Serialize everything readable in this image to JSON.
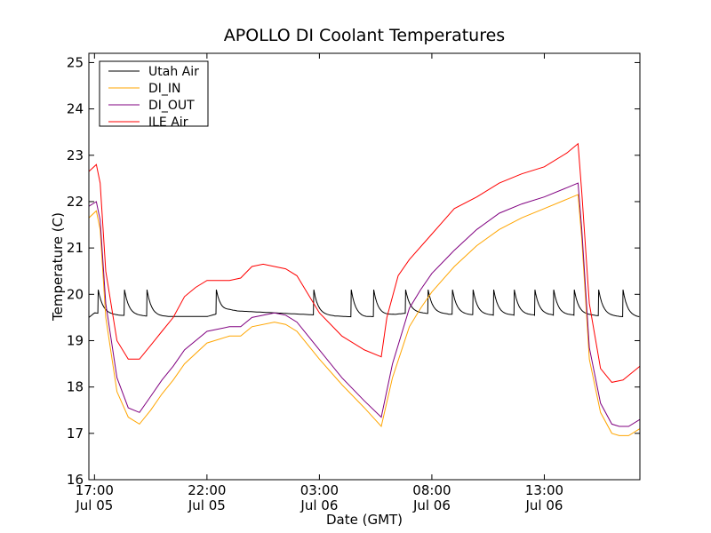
{
  "chart_data": {
    "type": "line",
    "title": "APOLLO DI Coolant Temperatures",
    "xlabel": "Date (GMT)",
    "ylabel": "Temperature (C)",
    "ylim": [
      16,
      25.2
    ],
    "xlim": [
      "Jul 05 16:45",
      "Jul 06 17:15"
    ],
    "yticks": [
      16,
      17,
      18,
      19,
      20,
      21,
      22,
      23,
      24,
      25
    ],
    "xticks": [
      {
        "t": "Jul 05 17:00",
        "line1": "17:00",
        "line2": "Jul 05"
      },
      {
        "t": "Jul 05 22:00",
        "line1": "22:00",
        "line2": "Jul 05"
      },
      {
        "t": "Jul 06 03:00",
        "line1": "03:00",
        "line2": "Jul 06"
      },
      {
        "t": "Jul 06 08:00",
        "line1": "08:00",
        "line2": "Jul 06"
      },
      {
        "t": "Jul 06 13:00",
        "line1": "13:00",
        "line2": "Jul 06"
      }
    ],
    "grid": false,
    "legend_position": "top-left",
    "series": [
      {
        "name": "Utah Air",
        "color": "#000000",
        "points": [
          [
            "Jul 05 16:45",
            19.5
          ],
          [
            "Jul 05 17:00",
            19.6
          ],
          [
            "Jul 05 18:00",
            19.55
          ],
          [
            "Jul 05 20:00",
            19.52
          ],
          [
            "Jul 05 22:00",
            19.52
          ],
          [
            "Jul 05 23:00",
            19.65
          ],
          [
            "Jul 06 01:00",
            19.6
          ],
          [
            "Jul 06 03:00",
            19.55
          ],
          [
            "Jul 06 05:00",
            19.5
          ],
          [
            "Jul 06 07:00",
            19.6
          ],
          [
            "Jul 06 10:00",
            19.55
          ],
          [
            "Jul 06 13:00",
            19.55
          ],
          [
            "Jul 06 15:00",
            19.55
          ],
          [
            "Jul 06 17:15",
            19.5
          ]
        ],
        "spikes": [
          "Jul 05 17:10",
          "Jul 05 18:20",
          "Jul 05 19:20",
          "Jul 05 22:25",
          "Jul 06 02:45",
          "Jul 06 04:25",
          "Jul 06 05:25",
          "Jul 06 06:50",
          "Jul 06 07:50",
          "Jul 06 08:55",
          "Jul 06 09:50",
          "Jul 06 10:45",
          "Jul 06 11:40",
          "Jul 06 12:35",
          "Jul 06 13:25",
          "Jul 06 14:20",
          "Jul 06 15:25",
          "Jul 06 16:30"
        ],
        "spike_peak": 20.1
      },
      {
        "name": "DI_IN",
        "color": "#ffa500",
        "points": [
          [
            "Jul 05 16:45",
            21.65
          ],
          [
            "Jul 05 17:05",
            21.8
          ],
          [
            "Jul 05 17:15",
            21.4
          ],
          [
            "Jul 05 17:30",
            19.5
          ],
          [
            "Jul 05 18:00",
            17.9
          ],
          [
            "Jul 05 18:30",
            17.35
          ],
          [
            "Jul 05 19:00",
            17.2
          ],
          [
            "Jul 05 19:30",
            17.5
          ],
          [
            "Jul 05 20:00",
            17.85
          ],
          [
            "Jul 05 20:30",
            18.15
          ],
          [
            "Jul 05 21:00",
            18.5
          ],
          [
            "Jul 05 22:00",
            18.95
          ],
          [
            "Jul 05 23:00",
            19.1
          ],
          [
            "Jul 05 23:30",
            19.1
          ],
          [
            "Jul 06 00:00",
            19.3
          ],
          [
            "Jul 06 01:00",
            19.4
          ],
          [
            "Jul 06 01:30",
            19.35
          ],
          [
            "Jul 06 02:00",
            19.2
          ],
          [
            "Jul 06 03:00",
            18.6
          ],
          [
            "Jul 06 04:00",
            18.05
          ],
          [
            "Jul 06 05:00",
            17.55
          ],
          [
            "Jul 06 05:45",
            17.15
          ],
          [
            "Jul 06 06:15",
            18.2
          ],
          [
            "Jul 06 07:00",
            19.3
          ],
          [
            "Jul 06 07:30",
            19.7
          ],
          [
            "Jul 06 08:00",
            20.05
          ],
          [
            "Jul 06 09:00",
            20.6
          ],
          [
            "Jul 06 10:00",
            21.05
          ],
          [
            "Jul 06 11:00",
            21.4
          ],
          [
            "Jul 06 12:00",
            21.65
          ],
          [
            "Jul 06 13:00",
            21.85
          ],
          [
            "Jul 06 14:00",
            22.05
          ],
          [
            "Jul 06 14:30",
            22.15
          ],
          [
            "Jul 06 14:40",
            21.2
          ],
          [
            "Jul 06 15:00",
            18.6
          ],
          [
            "Jul 06 15:30",
            17.45
          ],
          [
            "Jul 06 16:00",
            17.0
          ],
          [
            "Jul 06 16:20",
            16.95
          ],
          [
            "Jul 06 16:45",
            16.95
          ],
          [
            "Jul 06 17:15",
            17.1
          ]
        ]
      },
      {
        "name": "DI_OUT",
        "color": "#800080",
        "points": [
          [
            "Jul 05 16:45",
            21.9
          ],
          [
            "Jul 05 17:05",
            22.0
          ],
          [
            "Jul 05 17:15",
            21.6
          ],
          [
            "Jul 05 17:30",
            19.8
          ],
          [
            "Jul 05 18:00",
            18.2
          ],
          [
            "Jul 05 18:30",
            17.55
          ],
          [
            "Jul 05 19:00",
            17.45
          ],
          [
            "Jul 05 19:30",
            17.8
          ],
          [
            "Jul 05 20:00",
            18.15
          ],
          [
            "Jul 05 20:30",
            18.45
          ],
          [
            "Jul 05 21:00",
            18.8
          ],
          [
            "Jul 05 22:00",
            19.2
          ],
          [
            "Jul 05 23:00",
            19.3
          ],
          [
            "Jul 05 23:30",
            19.3
          ],
          [
            "Jul 06 00:00",
            19.5
          ],
          [
            "Jul 06 01:00",
            19.6
          ],
          [
            "Jul 06 01:30",
            19.55
          ],
          [
            "Jul 06 02:00",
            19.4
          ],
          [
            "Jul 06 03:00",
            18.8
          ],
          [
            "Jul 06 04:00",
            18.2
          ],
          [
            "Jul 06 05:00",
            17.7
          ],
          [
            "Jul 06 05:45",
            17.35
          ],
          [
            "Jul 06 06:15",
            18.5
          ],
          [
            "Jul 06 07:00",
            19.7
          ],
          [
            "Jul 06 07:30",
            20.1
          ],
          [
            "Jul 06 08:00",
            20.45
          ],
          [
            "Jul 06 09:00",
            20.95
          ],
          [
            "Jul 06 10:00",
            21.4
          ],
          [
            "Jul 06 11:00",
            21.75
          ],
          [
            "Jul 06 12:00",
            21.95
          ],
          [
            "Jul 06 13:00",
            22.1
          ],
          [
            "Jul 06 14:00",
            22.3
          ],
          [
            "Jul 06 14:30",
            22.4
          ],
          [
            "Jul 06 14:40",
            21.4
          ],
          [
            "Jul 06 15:00",
            18.85
          ],
          [
            "Jul 06 15:30",
            17.65
          ],
          [
            "Jul 06 16:00",
            17.2
          ],
          [
            "Jul 06 16:20",
            17.15
          ],
          [
            "Jul 06 16:45",
            17.15
          ],
          [
            "Jul 06 17:15",
            17.3
          ]
        ]
      },
      {
        "name": "ILE Air",
        "color": "#ff0000",
        "points": [
          [
            "Jul 05 16:45",
            22.65
          ],
          [
            "Jul 05 17:05",
            22.8
          ],
          [
            "Jul 05 17:15",
            22.4
          ],
          [
            "Jul 05 17:30",
            20.5
          ],
          [
            "Jul 05 18:00",
            19.0
          ],
          [
            "Jul 05 18:30",
            18.6
          ],
          [
            "Jul 05 19:00",
            18.6
          ],
          [
            "Jul 05 19:30",
            18.9
          ],
          [
            "Jul 05 20:00",
            19.2
          ],
          [
            "Jul 05 20:30",
            19.5
          ],
          [
            "Jul 05 21:00",
            19.95
          ],
          [
            "Jul 05 21:30",
            20.15
          ],
          [
            "Jul 05 22:00",
            20.3
          ],
          [
            "Jul 05 23:00",
            20.3
          ],
          [
            "Jul 05 23:30",
            20.35
          ],
          [
            "Jul 06 00:00",
            20.6
          ],
          [
            "Jul 06 00:30",
            20.65
          ],
          [
            "Jul 06 01:30",
            20.55
          ],
          [
            "Jul 06 02:00",
            20.4
          ],
          [
            "Jul 06 02:30",
            20.0
          ],
          [
            "Jul 06 03:00",
            19.6
          ],
          [
            "Jul 06 04:00",
            19.1
          ],
          [
            "Jul 06 05:00",
            18.8
          ],
          [
            "Jul 06 05:45",
            18.65
          ],
          [
            "Jul 06 06:00",
            19.5
          ],
          [
            "Jul 06 06:30",
            20.4
          ],
          [
            "Jul 06 07:00",
            20.75
          ],
          [
            "Jul 06 08:00",
            21.3
          ],
          [
            "Jul 06 09:00",
            21.85
          ],
          [
            "Jul 06 10:00",
            22.1
          ],
          [
            "Jul 06 11:00",
            22.4
          ],
          [
            "Jul 06 12:00",
            22.6
          ],
          [
            "Jul 06 13:00",
            22.75
          ],
          [
            "Jul 06 14:00",
            23.05
          ],
          [
            "Jul 06 14:30",
            23.25
          ],
          [
            "Jul 06 14:40",
            22.2
          ],
          [
            "Jul 06 15:00",
            19.8
          ],
          [
            "Jul 06 15:30",
            18.4
          ],
          [
            "Jul 06 16:00",
            18.1
          ],
          [
            "Jul 06 16:30",
            18.15
          ],
          [
            "Jul 06 17:15",
            18.45
          ]
        ]
      }
    ]
  }
}
